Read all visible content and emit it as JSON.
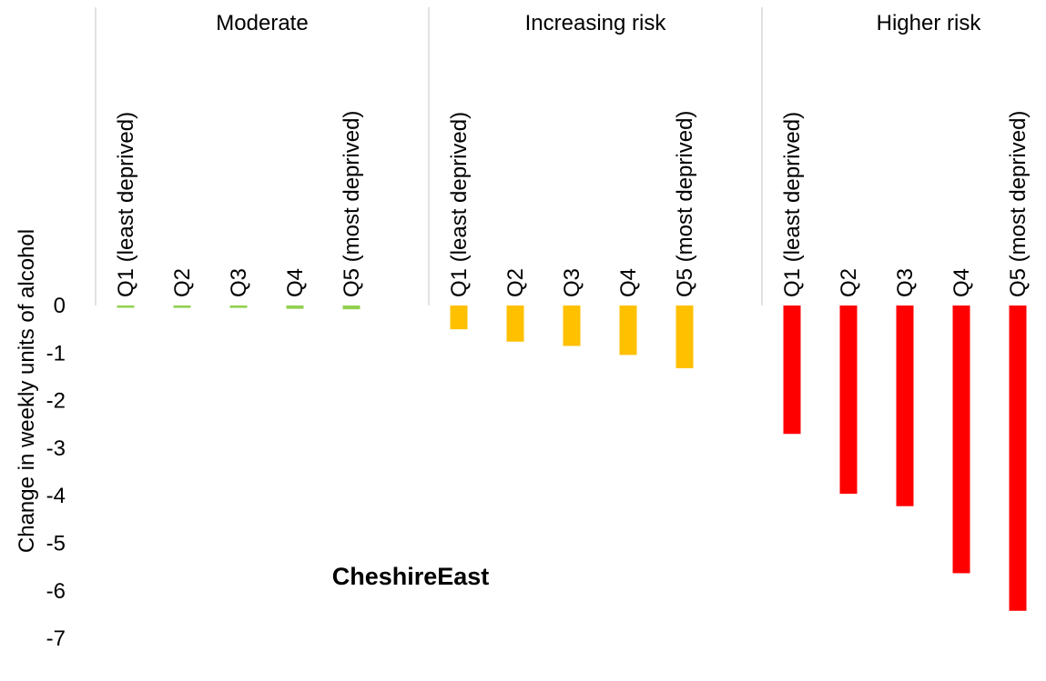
{
  "chart_data": {
    "type": "bar",
    "title": "CheshireEast",
    "ylabel": "Change in weekly units of alcohol",
    "xlabel": "",
    "ylim": [
      -7,
      0
    ],
    "yticks": [
      0,
      -1,
      -2,
      -3,
      -4,
      -5,
      -6,
      -7
    ],
    "grid": false,
    "legend": "none",
    "groups": [
      {
        "name": "Moderate",
        "color": "#92D050",
        "categories": [
          "Q1  (least deprived)",
          "Q2",
          "Q3",
          "Q4",
          "Q5  (most deprived)"
        ],
        "values": [
          -0.04,
          -0.05,
          -0.05,
          -0.07,
          -0.08
        ]
      },
      {
        "name": "Increasing risk",
        "color": "#FFC000",
        "categories": [
          "Q1  (least deprived)",
          "Q2",
          "Q3",
          "Q4",
          "Q5  (most deprived)"
        ],
        "values": [
          -0.5,
          -0.76,
          -0.85,
          -1.04,
          -1.32
        ]
      },
      {
        "name": "Higher risk",
        "color": "#FF0000",
        "categories": [
          "Q1  (least deprived)",
          "Q2",
          "Q3",
          "Q4",
          "Q5  (most deprived)"
        ],
        "values": [
          -2.7,
          -3.96,
          -4.22,
          -5.63,
          -6.42
        ]
      }
    ]
  }
}
